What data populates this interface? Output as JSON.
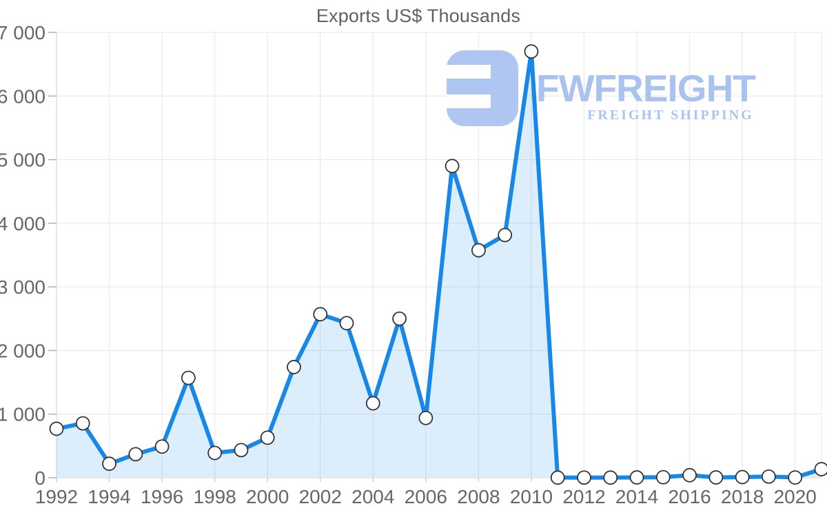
{
  "chart": {
    "title": "Exports US$ Thousands"
  },
  "watermark": {
    "brand": "FWFREIGHT",
    "tagline": "FREIGHT SHIPPING",
    "icon_color": "#aec6f1",
    "brand_color": "#a9c2ef",
    "tagline_color": "#abc5f0"
  },
  "chart_data": {
    "type": "area",
    "title": "Exports US$ Thousands",
    "x": [
      1992,
      1993,
      1994,
      1995,
      1996,
      1997,
      1998,
      1999,
      2000,
      2001,
      2002,
      2003,
      2004,
      2005,
      2006,
      2007,
      2008,
      2009,
      2010,
      2011,
      2012,
      2013,
      2014,
      2015,
      2016,
      2017,
      2018,
      2019,
      2020,
      2021
    ],
    "values": [
      770,
      855,
      220,
      370,
      490,
      1570,
      390,
      435,
      630,
      1740,
      2570,
      2430,
      1170,
      2500,
      940,
      4900,
      3575,
      3815,
      6700,
      2,
      3,
      2,
      5,
      8,
      40,
      5,
      10,
      18,
      4,
      135
    ],
    "xlabel": "",
    "ylabel": "",
    "ylim": [
      0,
      7000
    ],
    "ytick_interval": 1000,
    "ytick_labels": [
      "0",
      "1 000",
      "2 000",
      "3 000",
      "4 000",
      "5 000",
      "6 000",
      "7 000"
    ],
    "xtick_labels": [
      "1992",
      "1994",
      "1996",
      "1998",
      "2000",
      "2002",
      "2004",
      "2006",
      "2008",
      "2010",
      "2012",
      "2014",
      "2016",
      "2018",
      "2020"
    ],
    "grid": true,
    "legend": "none",
    "line_color": "#1788e8",
    "fill_color": "rgba(23,136,232,0.15)",
    "marker_fill": "#fefefe",
    "marker_stroke": "#333333",
    "gridline_color": "#e6e6e6",
    "axis_color": "#d2d2d2",
    "ytick_color": "#b0b0b0",
    "xtick_color": "#cfcfcf",
    "label_color": "#666666"
  }
}
